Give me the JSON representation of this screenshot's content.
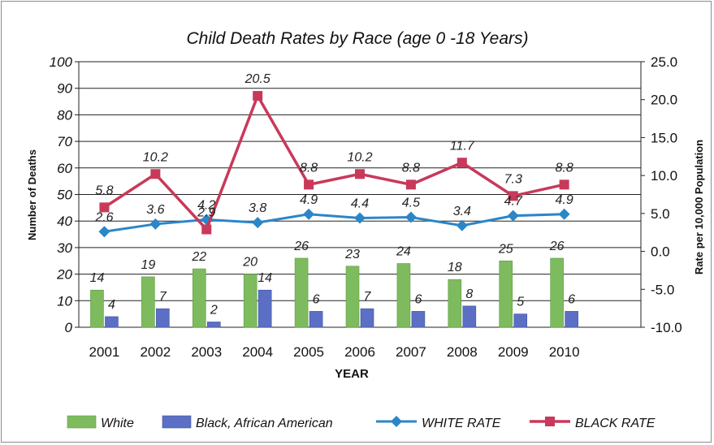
{
  "chart_data": {
    "type": "bar+line",
    "title": "Child Death Rates by Race (age 0 -18 Years)",
    "xlabel": "YEAR",
    "ylabel": "Number of Deaths",
    "y2label": "Rate per 10,000 Population",
    "categories": [
      "2001",
      "2002",
      "2003",
      "2004",
      "2005",
      "2006",
      "2007",
      "2008",
      "2009",
      "2010"
    ],
    "ylim": [
      0,
      100
    ],
    "yticks": [
      "0",
      "10",
      "20",
      "30",
      "40",
      "50",
      "60",
      "70",
      "80",
      "90",
      "100"
    ],
    "y2lim": [
      -10,
      25
    ],
    "y2ticks": [
      "-10.0",
      "-5.0",
      "0.0",
      "5.0",
      "10.0",
      "15.0",
      "20.0",
      "25.0"
    ],
    "grid": true,
    "legend_position": "bottom",
    "series": [
      {
        "name": "White",
        "type": "bar",
        "axis": "left",
        "color": "#7dbb5e",
        "values": [
          14,
          19,
          22,
          20,
          26,
          23,
          24,
          18,
          25,
          26
        ],
        "labels": [
          "14",
          "19",
          "22",
          "20",
          "26",
          "23",
          "24",
          "18",
          "25",
          "26"
        ]
      },
      {
        "name": "Black, African American",
        "type": "bar",
        "axis": "left",
        "color": "#5b6fc4",
        "values": [
          4,
          7,
          2,
          14,
          6,
          7,
          6,
          8,
          5,
          6
        ],
        "labels": [
          "4",
          "7",
          "2",
          "14",
          "6",
          "7",
          "6",
          "8",
          "5",
          "6"
        ]
      },
      {
        "name": "WHITE RATE",
        "type": "line",
        "axis": "right",
        "color": "#2b86c8",
        "marker": "diamond",
        "values": [
          2.6,
          3.6,
          4.2,
          3.8,
          4.9,
          4.4,
          4.5,
          3.4,
          4.7,
          4.9
        ],
        "labels": [
          "2.6",
          "3.6",
          "4.2",
          "3.8",
          "4.9",
          "4.4",
          "4.5",
          "3.4",
          "4.7",
          "4.9"
        ]
      },
      {
        "name": "BLACK RATE",
        "type": "line",
        "axis": "right",
        "color": "#c8395a",
        "marker": "square",
        "values": [
          5.8,
          10.2,
          2.9,
          20.5,
          8.8,
          10.2,
          8.8,
          11.7,
          7.3,
          8.8
        ],
        "labels": [
          "5.8",
          "10.2",
          "2.9",
          "20.5",
          "8.8",
          "10.2",
          "8.8",
          "11.7",
          "7.3",
          "8.8"
        ]
      }
    ]
  }
}
